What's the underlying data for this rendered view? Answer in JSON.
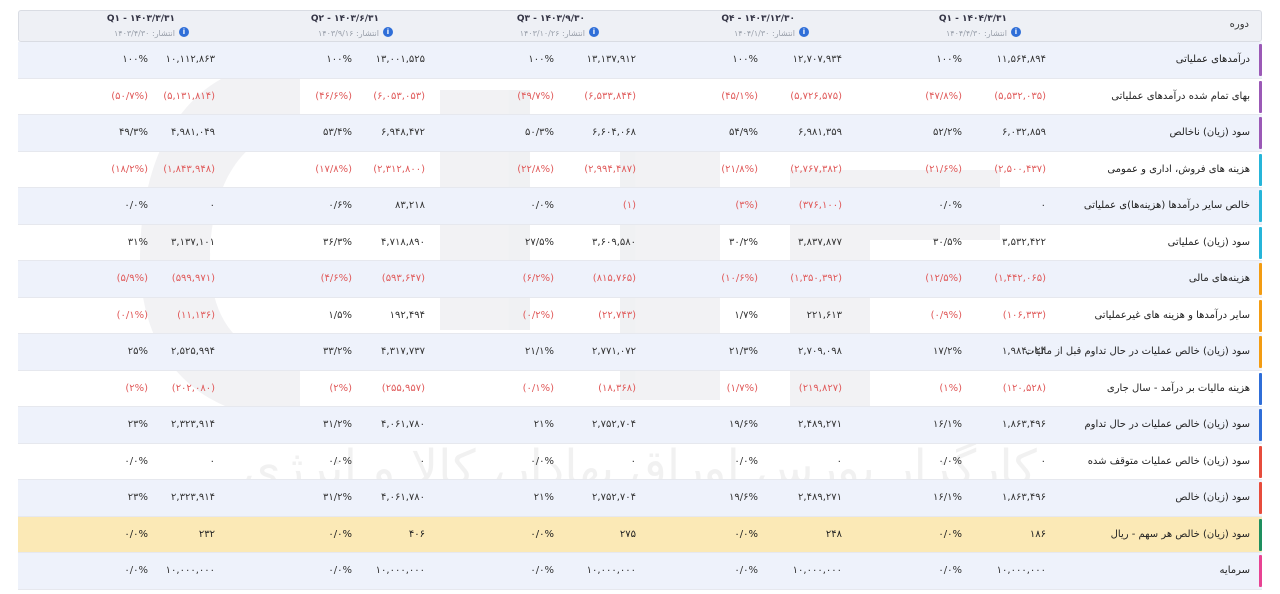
{
  "header_label": "دوره",
  "periods": [
    {
      "title": "Q۱ - ۱۴۰۴/۳/۳۱",
      "pub": "انتشار: ۱۴۰۴/۴/۳۰"
    },
    {
      "title": "Q۴ - ۱۴۰۳/۱۲/۳۰",
      "pub": "انتشار: ۱۴۰۴/۱/۳۰"
    },
    {
      "title": "Q۳ - ۱۴۰۳/۹/۳۰",
      "pub": "انتشار: ۱۴۰۳/۱۰/۲۶"
    },
    {
      "title": "Q۲ - ۱۴۰۳/۶/۳۱",
      "pub": "انتشار: ۱۴۰۳/۹/۱۶"
    },
    {
      "title": "Q۱ - ۱۴۰۳/۳/۳۱",
      "pub": "انتشار: ۱۴۰۳/۴/۳۰"
    }
  ],
  "watermark": "کارگزار بورس اوراق بهادار، کالا و انرژی",
  "rows": [
    {
      "label": "درآمدهای عملیاتی",
      "bar": "#9b59b6",
      "cells": [
        {
          "v": "۱۱,۵۶۴,۸۹۴",
          "p": "۱۰۰%",
          "neg": false
        },
        {
          "v": "۱۲,۷۰۷,۹۳۴",
          "p": "۱۰۰%",
          "neg": false
        },
        {
          "v": "۱۳,۱۳۷,۹۱۲",
          "p": "۱۰۰%",
          "neg": false
        },
        {
          "v": "۱۳,۰۰۱,۵۲۵",
          "p": "۱۰۰%",
          "neg": false
        },
        {
          "v": "۱۰,۱۱۲,۸۶۳",
          "p": "۱۰۰%",
          "neg": false
        }
      ]
    },
    {
      "label": "بهای تمام شده درآمدهای عملیاتی",
      "bar": "#9b59b6",
      "cells": [
        {
          "v": "(۵,۵۳۲,۰۳۵)",
          "p": "(۴۷/۸%)",
          "neg": true
        },
        {
          "v": "(۵,۷۲۶,۵۷۵)",
          "p": "(۴۵/۱%)",
          "neg": true
        },
        {
          "v": "(۶,۵۳۳,۸۴۴)",
          "p": "(۴۹/۷%)",
          "neg": true
        },
        {
          "v": "(۶,۰۵۳,۰۵۳)",
          "p": "(۴۶/۶%)",
          "neg": true
        },
        {
          "v": "(۵,۱۳۱,۸۱۴)",
          "p": "(۵۰/۷%)",
          "neg": true
        }
      ]
    },
    {
      "label": "سود (زیان) ناخالص",
      "bar": "#9b59b6",
      "cells": [
        {
          "v": "۶,۰۳۲,۸۵۹",
          "p": "۵۲/۲%",
          "neg": false
        },
        {
          "v": "۶,۹۸۱,۳۵۹",
          "p": "۵۴/۹%",
          "neg": false
        },
        {
          "v": "۶,۶۰۴,۰۶۸",
          "p": "۵۰/۳%",
          "neg": false
        },
        {
          "v": "۶,۹۴۸,۴۷۲",
          "p": "۵۳/۴%",
          "neg": false
        },
        {
          "v": "۴,۹۸۱,۰۴۹",
          "p": "۴۹/۳%",
          "neg": false
        }
      ]
    },
    {
      "label": "هزینه های فروش، اداری و عمومی",
      "bar": "#26b5d9",
      "cells": [
        {
          "v": "(۲,۵۰۰,۴۳۷)",
          "p": "(۲۱/۶%)",
          "neg": true
        },
        {
          "v": "(۲,۷۶۷,۳۸۲)",
          "p": "(۲۱/۸%)",
          "neg": true
        },
        {
          "v": "(۲,۹۹۴,۴۸۷)",
          "p": "(۲۲/۸%)",
          "neg": true
        },
        {
          "v": "(۲,۳۱۲,۸۰۰)",
          "p": "(۱۷/۸%)",
          "neg": true
        },
        {
          "v": "(۱,۸۴۳,۹۴۸)",
          "p": "(۱۸/۲%)",
          "neg": true
        }
      ]
    },
    {
      "label": "خالص سایر درآمدها (هزینه‌ها)ی عملیاتی",
      "bar": "#26b5d9",
      "cells": [
        {
          "v": "۰",
          "p": "۰/۰%",
          "neg": false
        },
        {
          "v": "(۳۷۶,۱۰۰)",
          "p": "(۳%)",
          "neg": true
        },
        {
          "v": "(۱)",
          "p": "۰/۰%",
          "neg": true
        },
        {
          "v": "۸۳,۲۱۸",
          "p": "۰/۶%",
          "neg": false
        },
        {
          "v": "۰",
          "p": "۰/۰%",
          "neg": false
        }
      ]
    },
    {
      "label": "سود (زیان) عملیاتی",
      "bar": "#26b5d9",
      "cells": [
        {
          "v": "۳,۵۳۲,۴۲۲",
          "p": "۳۰/۵%",
          "neg": false
        },
        {
          "v": "۳,۸۳۷,۸۷۷",
          "p": "۳۰/۲%",
          "neg": false
        },
        {
          "v": "۳,۶۰۹,۵۸۰",
          "p": "۲۷/۵%",
          "neg": false
        },
        {
          "v": "۴,۷۱۸,۸۹۰",
          "p": "۳۶/۳%",
          "neg": false
        },
        {
          "v": "۳,۱۳۷,۱۰۱",
          "p": "۳۱%",
          "neg": false
        }
      ]
    },
    {
      "label": "هزینه‌های مالی",
      "bar": "#f39c12",
      "cells": [
        {
          "v": "(۱,۴۴۲,۰۶۵)",
          "p": "(۱۲/۵%)",
          "neg": true
        },
        {
          "v": "(۱,۳۵۰,۳۹۲)",
          "p": "(۱۰/۶%)",
          "neg": true
        },
        {
          "v": "(۸۱۵,۷۶۵)",
          "p": "(۶/۲%)",
          "neg": true
        },
        {
          "v": "(۵۹۳,۶۴۷)",
          "p": "(۴/۶%)",
          "neg": true
        },
        {
          "v": "(۵۹۹,۹۷۱)",
          "p": "(۵/۹%)",
          "neg": true
        }
      ]
    },
    {
      "label": "سایر درآمدها و هزینه های غیرعملیاتی",
      "bar": "#f39c12",
      "cells": [
        {
          "v": "(۱۰۶,۳۳۳)",
          "p": "(۰/۹%)",
          "neg": true
        },
        {
          "v": "۲۲۱,۶۱۳",
          "p": "۱/۷%",
          "neg": false
        },
        {
          "v": "(۲۲,۷۴۳)",
          "p": "(۰/۲%)",
          "neg": true
        },
        {
          "v": "۱۹۲,۴۹۴",
          "p": "۱/۵%",
          "neg": false
        },
        {
          "v": "(۱۱,۱۳۶)",
          "p": "(۰/۱%)",
          "neg": true
        }
      ]
    },
    {
      "label": "سود (زیان) خالص عملیات در حال تداوم قبل از مالیات",
      "bar": "#f39c12",
      "cells": [
        {
          "v": "۱,۹۸۴,۰۲۴",
          "p": "۱۷/۲%",
          "neg": false
        },
        {
          "v": "۲,۷۰۹,۰۹۸",
          "p": "۲۱/۳%",
          "neg": false
        },
        {
          "v": "۲,۷۷۱,۰۷۲",
          "p": "۲۱/۱%",
          "neg": false
        },
        {
          "v": "۴,۳۱۷,۷۳۷",
          "p": "۳۳/۲%",
          "neg": false
        },
        {
          "v": "۲,۵۲۵,۹۹۴",
          "p": "۲۵%",
          "neg": false
        }
      ]
    },
    {
      "label": "هزینه مالیات بر درآمد - سال جاری",
      "bar": "#2f6ed8",
      "cells": [
        {
          "v": "(۱۲۰,۵۲۸)",
          "p": "(۱%)",
          "neg": true
        },
        {
          "v": "(۲۱۹,۸۲۷)",
          "p": "(۱/۷%)",
          "neg": true
        },
        {
          "v": "(۱۸,۳۶۸)",
          "p": "(۰/۱%)",
          "neg": true
        },
        {
          "v": "(۲۵۵,۹۵۷)",
          "p": "(۲%)",
          "neg": true
        },
        {
          "v": "(۲۰۲,۰۸۰)",
          "p": "(۲%)",
          "neg": true
        }
      ]
    },
    {
      "label": "سود (زیان) خالص عملیات در حال تداوم",
      "bar": "#2f6ed8",
      "cells": [
        {
          "v": "۱,۸۶۳,۴۹۶",
          "p": "۱۶/۱%",
          "neg": false
        },
        {
          "v": "۲,۴۸۹,۲۷۱",
          "p": "۱۹/۶%",
          "neg": false
        },
        {
          "v": "۲,۷۵۲,۷۰۴",
          "p": "۲۱%",
          "neg": false
        },
        {
          "v": "۴,۰۶۱,۷۸۰",
          "p": "۳۱/۲%",
          "neg": false
        },
        {
          "v": "۲,۳۲۳,۹۱۴",
          "p": "۲۳%",
          "neg": false
        }
      ]
    },
    {
      "label": "سود (زیان) خالص عملیات متوقف شده",
      "bar": "#e74c3c",
      "cells": [
        {
          "v": "۰",
          "p": "۰/۰%",
          "neg": false
        },
        {
          "v": "۰",
          "p": "۰/۰%",
          "neg": false
        },
        {
          "v": "۰",
          "p": "۰/۰%",
          "neg": false
        },
        {
          "v": "۰",
          "p": "۰/۰%",
          "neg": false
        },
        {
          "v": "۰",
          "p": "۰/۰%",
          "neg": false
        }
      ]
    },
    {
      "label": "سود (زیان) خالص",
      "bar": "#e74c3c",
      "cells": [
        {
          "v": "۱,۸۶۳,۴۹۶",
          "p": "۱۶/۱%",
          "neg": false
        },
        {
          "v": "۲,۴۸۹,۲۷۱",
          "p": "۱۹/۶%",
          "neg": false
        },
        {
          "v": "۲,۷۵۲,۷۰۴",
          "p": "۲۱%",
          "neg": false
        },
        {
          "v": "۴,۰۶۱,۷۸۰",
          "p": "۳۱/۲%",
          "neg": false
        },
        {
          "v": "۲,۳۲۳,۹۱۴",
          "p": "۲۳%",
          "neg": false
        }
      ]
    },
    {
      "label": "سود (زیان) خالص هر سهم - ریال",
      "bar": "#1e8f5f",
      "cells": [
        {
          "v": "۱۸۶",
          "p": "۰/۰%",
          "neg": false
        },
        {
          "v": "۲۴۸",
          "p": "۰/۰%",
          "neg": false
        },
        {
          "v": "۲۷۵",
          "p": "۰/۰%",
          "neg": false
        },
        {
          "v": "۴۰۶",
          "p": "۰/۰%",
          "neg": false
        },
        {
          "v": "۲۳۲",
          "p": "۰/۰%",
          "neg": false
        }
      ]
    },
    {
      "label": "سرمایه",
      "bar": "#e84393",
      "cells": [
        {
          "v": "۱۰,۰۰۰,۰۰۰",
          "p": "۰/۰%",
          "neg": false
        },
        {
          "v": "۱۰,۰۰۰,۰۰۰",
          "p": "۰/۰%",
          "neg": false
        },
        {
          "v": "۱۰,۰۰۰,۰۰۰",
          "p": "۰/۰%",
          "neg": false
        },
        {
          "v": "۱۰,۰۰۰,۰۰۰",
          "p": "۰/۰%",
          "neg": false
        },
        {
          "v": "۱۰,۰۰۰,۰۰۰",
          "p": "۰/۰%",
          "neg": false
        }
      ]
    }
  ]
}
